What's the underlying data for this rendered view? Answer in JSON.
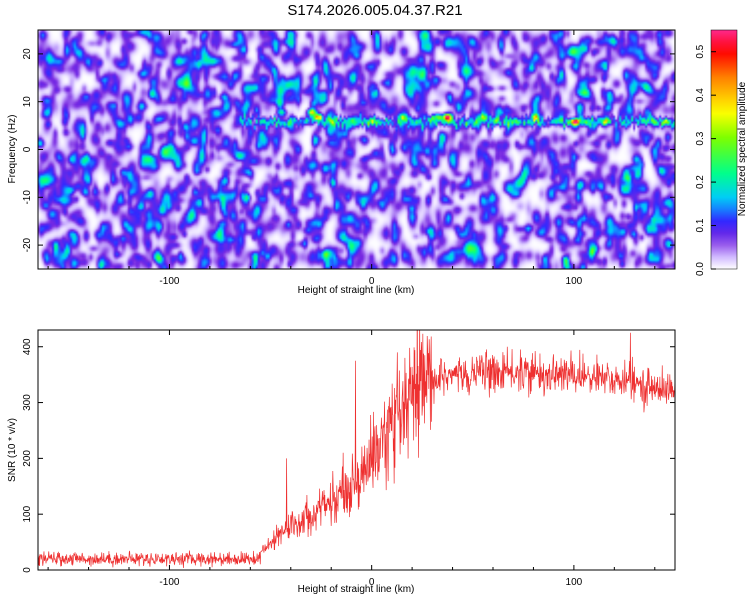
{
  "page": {
    "title": "S174.2026.005.04.37.R21"
  },
  "chart_data": [
    {
      "type": "heatmap",
      "title": "S174.2026.005.04.37.R21",
      "xlabel": "Height of straight line (km)",
      "ylabel": "Frequency (Hz)",
      "xlim": [
        -165,
        150
      ],
      "ylim": [
        -25,
        25
      ],
      "x_ticks": [
        -100,
        0,
        100
      ],
      "y_ticks": [
        -20,
        -10,
        0,
        10,
        20
      ],
      "colorbar": {
        "label": "Normalized spectral amplitude",
        "range": [
          0.0,
          0.55
        ],
        "ticks": [
          0.0,
          0.1,
          0.2,
          0.3,
          0.4,
          0.5
        ],
        "tick_labels": [
          "0.0",
          "0.1",
          "0.2",
          "0.3",
          "0.4",
          "0.5"
        ],
        "colors": [
          "#ffffff",
          "#8a40ff",
          "#3030ff",
          "#00e0ff",
          "#00ff60",
          "#c0ff00",
          "#ffff00",
          "#ff8000",
          "#ff0000",
          "#ff2080"
        ]
      },
      "noise_level_typical": 0.06,
      "signal_band": {
        "frequency_center_hz": 6,
        "x_start_km": -65,
        "x_end_km": 150,
        "peak_amplitudes": [
          {
            "x": -45,
            "y": 8,
            "value": 0.18
          },
          {
            "x": -30,
            "y": 8,
            "value": 0.32
          },
          {
            "x": -27,
            "y": 7,
            "value": 0.35
          },
          {
            "x": -20,
            "y": 6,
            "value": 0.14
          },
          {
            "x": 0,
            "y": 6,
            "value": 0.12
          },
          {
            "x": 15,
            "y": 7,
            "value": 0.2
          },
          {
            "x": 32,
            "y": 7,
            "value": 0.28
          },
          {
            "x": 37,
            "y": 7,
            "value": 0.45
          },
          {
            "x": 55,
            "y": 7,
            "value": 0.15
          },
          {
            "x": 80,
            "y": 7,
            "value": 0.18
          },
          {
            "x": 100,
            "y": 6,
            "value": 0.38
          },
          {
            "x": 115,
            "y": 6,
            "value": 0.16
          },
          {
            "x": 145,
            "y": 6,
            "value": 0.16
          }
        ]
      }
    },
    {
      "type": "line",
      "xlabel": "Height of straight line (km)",
      "ylabel": "SNR (10 * v/v)",
      "xlim": [
        -165,
        150
      ],
      "ylim": [
        0,
        430
      ],
      "x_ticks": [
        -100,
        0,
        100
      ],
      "y_ticks": [
        0,
        100,
        200,
        300,
        400
      ],
      "color": "#ee3030",
      "baseline_segment": {
        "x_range": [
          -165,
          -55
        ],
        "mean": 20,
        "noise_range": [
          5,
          45
        ]
      },
      "envelope": [
        {
          "x": -165,
          "y": 20
        },
        {
          "x": -60,
          "y": 22
        },
        {
          "x": -52,
          "y": 40
        },
        {
          "x": -40,
          "y": 80
        },
        {
          "x": -25,
          "y": 110
        },
        {
          "x": -10,
          "y": 150
        },
        {
          "x": 0,
          "y": 200
        },
        {
          "x": 10,
          "y": 250
        },
        {
          "x": 20,
          "y": 300
        },
        {
          "x": 30,
          "y": 340
        },
        {
          "x": 50,
          "y": 355
        },
        {
          "x": 100,
          "y": 350
        },
        {
          "x": 120,
          "y": 340
        },
        {
          "x": 150,
          "y": 320
        }
      ],
      "notable_peaks": [
        {
          "x": -42,
          "y": 200
        },
        {
          "x": -8,
          "y": 375
        },
        {
          "x": 128,
          "y": 425
        }
      ]
    }
  ]
}
